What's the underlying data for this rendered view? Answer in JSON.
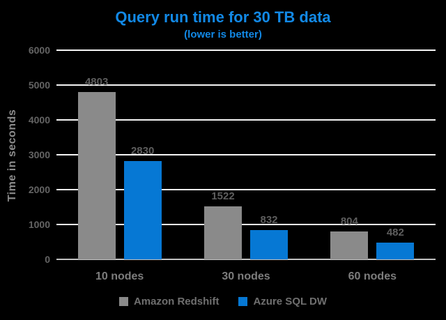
{
  "chart_data": {
    "type": "bar",
    "title": "Query run time for 30 TB data",
    "subtitle": "(lower is better)",
    "ylabel": "Time in seconds",
    "xlabel": "",
    "categories": [
      "10 nodes",
      "30 nodes",
      "60 nodes"
    ],
    "series": [
      {
        "name": "Amazon Redshift",
        "color": "#8a8a8a",
        "values": [
          4803,
          1522,
          804
        ]
      },
      {
        "name": "Azure SQL DW",
        "color": "#0678d4",
        "values": [
          2830,
          832,
          482
        ]
      }
    ],
    "ylim": [
      0,
      6000
    ],
    "ytick_step": 1000,
    "ytick_labels": [
      "0",
      "1000",
      "2000",
      "3000",
      "4000",
      "5000",
      "6000"
    ],
    "grid": "horizontal",
    "legend_position": "bottom",
    "data_labels": true
  },
  "colors": {
    "background": "#000000",
    "title": "#1289e6",
    "subtitle": "#1289e6",
    "gridline": "#f5f5f5",
    "axis_line": "#c2c2c2",
    "tick_label": "#646464",
    "data_label": "#5e5e5e",
    "category_label": "#7d7d7d",
    "ylabel": "#8c8c8c",
    "legend_text": "#6f6f6f"
  }
}
